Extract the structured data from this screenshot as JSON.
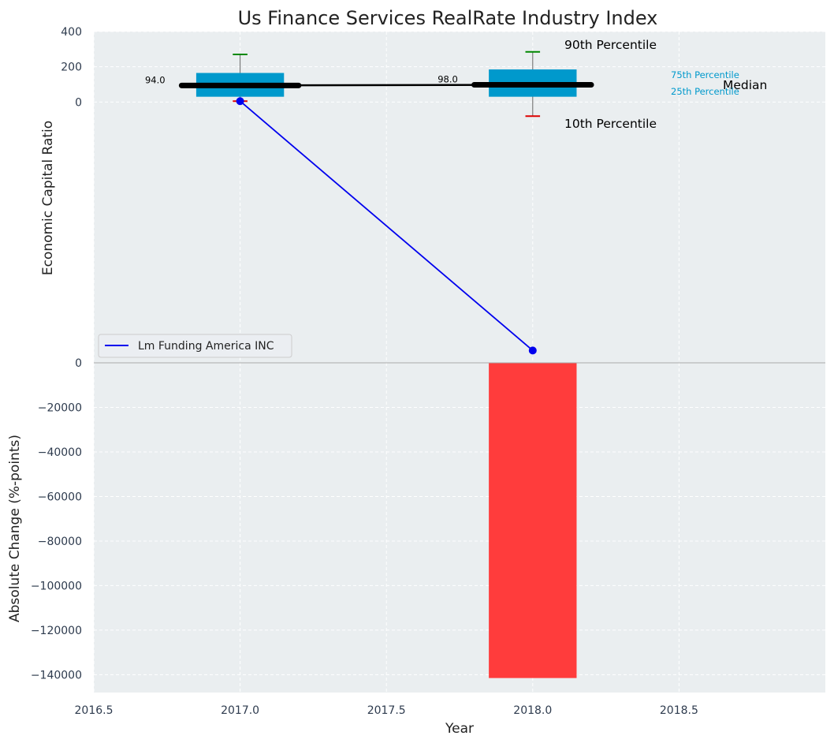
{
  "chart_data": {
    "type": "boxplot-with-bar",
    "title": "Us Finance Services RealRate Industry Index",
    "xlabel": "Year",
    "xlim": [
      2016.5,
      2019.0
    ],
    "x_ticks": [
      2016.5,
      2017.0,
      2017.5,
      2018.0,
      2018.5
    ],
    "x_tick_labels": [
      "2016.5",
      "2017.0",
      "2017.5",
      "2018.0",
      "2018.5"
    ],
    "top_panel": {
      "ylabel": "Economic Capital Ratio",
      "ylim": [
        -1480,
        400
      ],
      "y_ticks": [
        0,
        200,
        400
      ],
      "y_tick_labels": [
        "0",
        "200",
        "400"
      ],
      "boxes": [
        {
          "year": 2017,
          "p10": 5,
          "p25": 30,
          "median": 94.0,
          "p75": 165,
          "p90": 270,
          "median_label": "94.0"
        },
        {
          "year": 2018,
          "p10": -80,
          "p25": 30,
          "median": 98.0,
          "p75": 185,
          "p90": 285,
          "median_label": "98.0"
        }
      ],
      "series": [
        {
          "name": "Lm Funding America INC",
          "color": "#0000ee",
          "x": [
            2017,
            2018
          ],
          "y": [
            5,
            -1410
          ]
        }
      ],
      "legend": {
        "position": "lower-left",
        "entries": [
          "Lm Funding America INC"
        ]
      },
      "annotations": {
        "p90": "90th Percentile",
        "p75": "75th Percentile",
        "median": "Median",
        "p25": "25th Percentile",
        "p10": "10th Percentile"
      }
    },
    "bottom_panel": {
      "ylabel": "Absolute Change (%-points)",
      "ylim": [
        -148000,
        0
      ],
      "y_ticks": [
        0,
        -20000,
        -40000,
        -60000,
        -80000,
        -100000,
        -120000,
        -140000
      ],
      "y_tick_labels": [
        "0",
        "−20000",
        "−40000",
        "−60000",
        "−80000",
        "−100000",
        "−120000",
        "−140000"
      ],
      "bars": [
        {
          "year": 2018,
          "value": -141500,
          "color": "#ff3c3c"
        }
      ]
    },
    "colors": {
      "box": "#0099cc",
      "median_line": "#000000",
      "p90_cap": "#008800",
      "p10_cap": "#dd0000",
      "panel_bg": "#eaeef0",
      "tick_text": "#2e3b4e"
    }
  }
}
